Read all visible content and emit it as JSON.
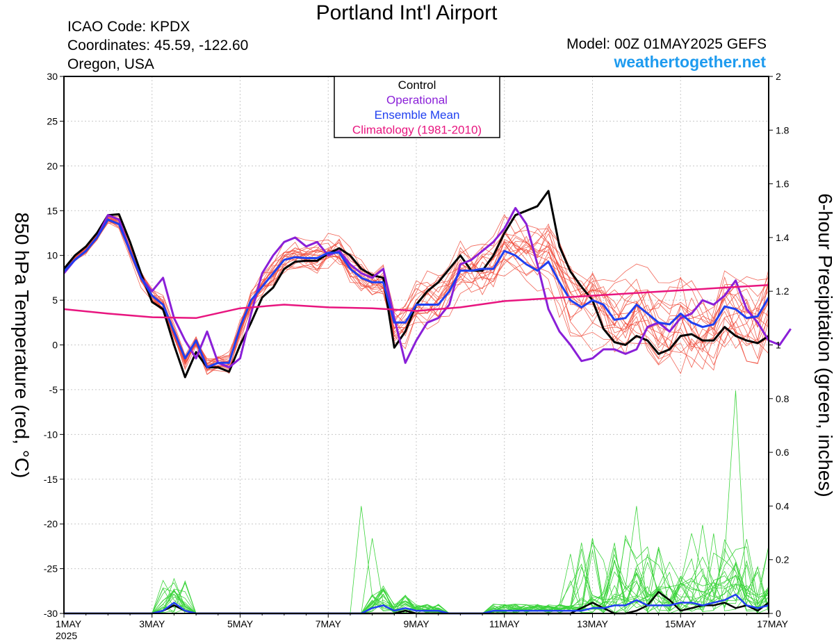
{
  "header": {
    "title": "Portland Int'l Airport",
    "icao": "ICAO Code: KPDX",
    "coordinates": "Coordinates: 45.59, -122.60",
    "region": "Oregon, USA",
    "model": "Model: 00Z 01MAY2025 GEFS",
    "site": "weathertogether.net"
  },
  "legend": {
    "items": [
      {
        "label": "Control",
        "color": "#000000"
      },
      {
        "label": "Operational",
        "color": "#8a1fd8"
      },
      {
        "label": "Ensemble Mean",
        "color": "#1f3ff0"
      },
      {
        "label": "Climatology (1981-2010)",
        "color": "#e8157f"
      }
    ]
  },
  "chart_data": {
    "type": "line",
    "x_unit": "days since 1MAY 2025 00Z",
    "xlim": [
      0,
      16
    ],
    "x_ticks": [
      {
        "x": 0,
        "label": "1MAY",
        "sub": "2025"
      },
      {
        "x": 2,
        "label": "3MAY"
      },
      {
        "x": 4,
        "label": "5MAY"
      },
      {
        "x": 6,
        "label": "7MAY"
      },
      {
        "x": 8,
        "label": "9MAY"
      },
      {
        "x": 10,
        "label": "11MAY"
      },
      {
        "x": 12,
        "label": "13MAY"
      },
      {
        "x": 14,
        "label": "15MAY"
      },
      {
        "x": 16,
        "label": "17MAY"
      }
    ],
    "y_left": {
      "label": "850 hPa Temperature (red, °C)",
      "lim": [
        -30,
        30
      ],
      "ticks": [
        -30,
        -25,
        -20,
        -15,
        -10,
        -5,
        0,
        5,
        10,
        15,
        20,
        25,
        30
      ]
    },
    "y_right": {
      "label": "6-hour Precipitation (green, inches)",
      "lim": [
        0,
        2
      ],
      "ticks": [
        "0",
        "0.2",
        "0.4",
        "0.6",
        "0.8",
        "1",
        "1.2",
        "1.4",
        "1.6",
        "1.8",
        "2"
      ]
    },
    "colors": {
      "members": "#f04a3a",
      "precip_members": "#3cd43c",
      "control": "#000000",
      "operational": "#8a1fd8",
      "mean": "#1f3ff0",
      "climatology": "#e8157f"
    },
    "series": [
      {
        "name": "Control",
        "axis": "temp",
        "values": [
          8.5,
          10,
          11,
          12.5,
          14.5,
          14.6,
          11.5,
          8,
          4.8,
          4,
          0,
          -3.6,
          -0.8,
          -2.5,
          -2.5,
          -3,
          0,
          2.5,
          5.3,
          6.4,
          8.5,
          9.3,
          9.4,
          9.4,
          10.2,
          10.8,
          10,
          8.5,
          7.8,
          7.5,
          -0.3,
          1.5,
          4.5,
          6,
          7,
          8.5,
          10,
          8.3,
          8.3,
          10,
          12.5,
          14.5,
          15,
          15.5,
          17.2,
          11,
          8.2,
          6.5,
          5,
          1.8,
          0.3,
          0,
          1,
          0.5,
          -1,
          -0.5,
          1,
          1.2,
          0.5,
          0.5,
          2,
          1,
          0.5,
          0.2,
          1
        ]
      },
      {
        "name": "Operational",
        "axis": "temp",
        "values": [
          8,
          9.5,
          10.5,
          12,
          14.5,
          14,
          10.5,
          7.5,
          6,
          7.5,
          3,
          0.5,
          -1.5,
          1.5,
          -2,
          -2.5,
          -1.5,
          3.5,
          8,
          10,
          11.5,
          12,
          11,
          11.5,
          10,
          10.5,
          9,
          8,
          7.5,
          8.5,
          3,
          -2,
          0.5,
          2.5,
          3,
          4.5,
          9,
          9.5,
          10.5,
          11.5,
          13,
          15.3,
          13.5,
          9,
          4,
          1.5,
          0,
          -1.8,
          -1.5,
          -0.5,
          -0.5,
          -1,
          -0.5,
          2,
          2.5,
          1.5,
          3,
          3.5,
          5,
          4.5,
          5.5,
          7.2,
          4,
          2.5,
          0.5,
          0,
          1.8
        ]
      },
      {
        "name": "Ensemble Mean",
        "axis": "temp",
        "values": [
          8.2,
          9.5,
          10.5,
          12,
          14,
          13.5,
          10.5,
          7.5,
          5.5,
          4.5,
          1.5,
          -1.5,
          0.5,
          -2.5,
          -2,
          -2,
          2,
          5,
          6.5,
          8,
          9.5,
          9.8,
          9.7,
          9.7,
          10.3,
          10.3,
          8.5,
          7.5,
          7,
          7,
          2.5,
          2.5,
          4.5,
          4.5,
          4.5,
          6,
          8.3,
          8.3,
          8.5,
          8.5,
          10.5,
          10,
          9,
          8.3,
          9.3,
          7,
          5,
          4.2,
          5,
          4.5,
          2.8,
          3,
          4.5,
          3.5,
          2.5,
          2.3,
          3.5,
          2.5,
          2,
          2.3,
          4.3,
          4,
          3,
          3.2,
          5.3
        ]
      },
      {
        "name": "Climatology (1981-2010)",
        "axis": "temp",
        "x": [
          0,
          1,
          2,
          3,
          4,
          5,
          6,
          7,
          8,
          9,
          10,
          11,
          12,
          13,
          14,
          15,
          16
        ],
        "values": [
          4,
          3.5,
          3.1,
          3,
          4.1,
          4.5,
          4.2,
          4.1,
          3.8,
          4.2,
          4.9,
          5.2,
          5.5,
          5.8,
          6.1,
          6.4,
          6.7
        ]
      },
      {
        "name": "Control precip",
        "axis": "precip",
        "values": [
          0,
          0,
          0,
          0,
          0,
          0,
          0,
          0,
          0,
          0.01,
          0.03,
          0.01,
          0,
          0,
          0,
          0,
          0,
          0,
          0,
          0,
          0,
          0,
          0,
          0,
          0,
          0,
          0,
          0,
          0,
          0,
          0,
          0.01,
          0,
          0,
          0,
          0,
          0,
          0,
          0,
          0,
          0,
          0,
          0,
          0,
          0,
          0,
          0,
          0.02,
          0.04,
          0.02,
          0,
          0,
          0.01,
          0.03,
          0.08,
          0.05,
          0.01,
          0.02,
          0.03,
          0.03,
          0.04,
          0.02,
          0.03,
          0.01,
          0.04
        ]
      },
      {
        "name": "Ensemble Mean precip",
        "axis": "precip",
        "values": [
          0,
          0,
          0,
          0,
          0,
          0,
          0,
          0,
          0,
          0.01,
          0.04,
          0.01,
          0,
          0,
          0,
          0,
          0,
          0,
          0,
          0,
          0,
          0,
          0,
          0,
          0,
          0,
          0,
          0,
          0.02,
          0.03,
          0.01,
          0.02,
          0.01,
          0.01,
          0.01,
          0,
          0,
          0,
          0,
          0.01,
          0.01,
          0.01,
          0.01,
          0.01,
          0.01,
          0.01,
          0.01,
          0.01,
          0.02,
          0.02,
          0.03,
          0.03,
          0.05,
          0.03,
          0.03,
          0.03,
          0.04,
          0.04,
          0.03,
          0.04,
          0.05,
          0.07,
          0.03,
          0.02,
          0.03
        ]
      }
    ]
  }
}
